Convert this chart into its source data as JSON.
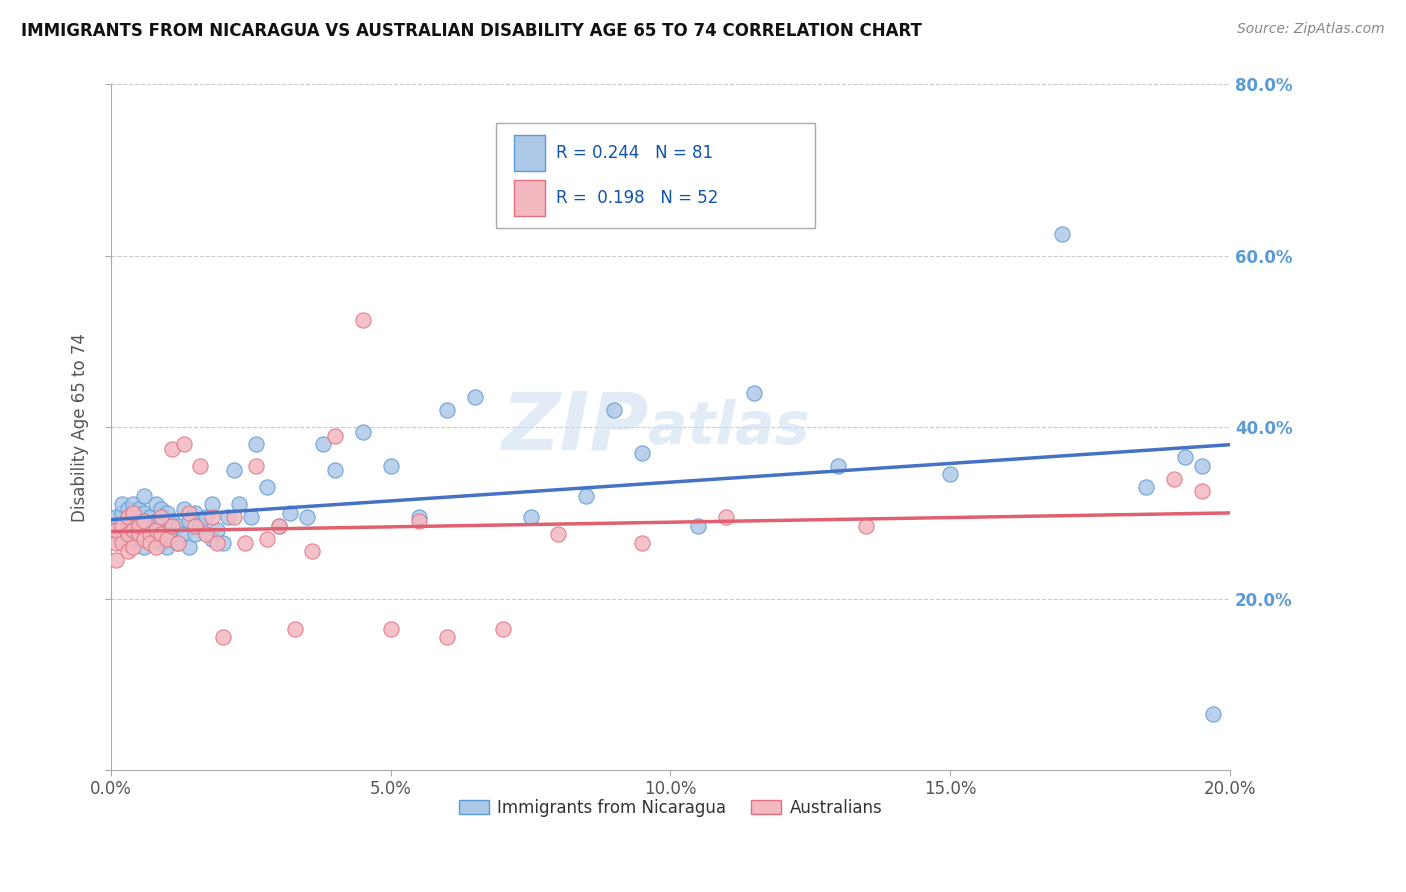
{
  "title": "IMMIGRANTS FROM NICARAGUA VS AUSTRALIAN DISABILITY AGE 65 TO 74 CORRELATION CHART",
  "source": "Source: ZipAtlas.com",
  "ylabel": "Disability Age 65 to 74",
  "xlim": [
    0.0,
    0.2
  ],
  "ylim": [
    0.0,
    0.8
  ],
  "xticks": [
    0.0,
    0.05,
    0.1,
    0.15,
    0.2
  ],
  "yticks": [
    0.0,
    0.2,
    0.4,
    0.6,
    0.8
  ],
  "legend_blue_label": "Immigrants from Nicaragua",
  "legend_pink_label": "Australians",
  "r_blue": 0.244,
  "n_blue": 81,
  "r_pink": 0.198,
  "n_pink": 52,
  "color_blue_fill": "#aec8e8",
  "color_blue_edge": "#5b9bd5",
  "color_blue_line": "#4472c4",
  "color_pink_fill": "#f4b8c1",
  "color_pink_edge": "#e07080",
  "color_pink_line": "#e06070",
  "background_color": "#ffffff",
  "grid_color": "#cccccc",
  "blue_points_x": [
    0.001,
    0.001,
    0.001,
    0.002,
    0.002,
    0.002,
    0.002,
    0.003,
    0.003,
    0.003,
    0.003,
    0.003,
    0.004,
    0.004,
    0.004,
    0.004,
    0.005,
    0.005,
    0.005,
    0.005,
    0.006,
    0.006,
    0.006,
    0.006,
    0.007,
    0.007,
    0.007,
    0.008,
    0.008,
    0.008,
    0.009,
    0.009,
    0.009,
    0.01,
    0.01,
    0.01,
    0.011,
    0.011,
    0.012,
    0.012,
    0.013,
    0.013,
    0.014,
    0.014,
    0.015,
    0.015,
    0.016,
    0.017,
    0.018,
    0.018,
    0.019,
    0.02,
    0.021,
    0.022,
    0.023,
    0.025,
    0.026,
    0.028,
    0.03,
    0.032,
    0.035,
    0.038,
    0.04,
    0.045,
    0.05,
    0.055,
    0.06,
    0.065,
    0.075,
    0.085,
    0.09,
    0.095,
    0.105,
    0.115,
    0.13,
    0.15,
    0.17,
    0.185,
    0.192,
    0.195,
    0.197
  ],
  "blue_points_y": [
    0.285,
    0.295,
    0.275,
    0.28,
    0.3,
    0.27,
    0.31,
    0.275,
    0.295,
    0.265,
    0.305,
    0.285,
    0.29,
    0.27,
    0.31,
    0.28,
    0.285,
    0.295,
    0.275,
    0.305,
    0.28,
    0.3,
    0.26,
    0.32,
    0.285,
    0.295,
    0.275,
    0.29,
    0.27,
    0.31,
    0.285,
    0.265,
    0.305,
    0.28,
    0.3,
    0.26,
    0.29,
    0.27,
    0.285,
    0.265,
    0.305,
    0.275,
    0.29,
    0.26,
    0.3,
    0.275,
    0.285,
    0.295,
    0.27,
    0.31,
    0.28,
    0.265,
    0.295,
    0.35,
    0.31,
    0.295,
    0.38,
    0.33,
    0.285,
    0.3,
    0.295,
    0.38,
    0.35,
    0.395,
    0.355,
    0.295,
    0.42,
    0.435,
    0.295,
    0.32,
    0.42,
    0.37,
    0.285,
    0.44,
    0.355,
    0.345,
    0.625,
    0.33,
    0.365,
    0.355,
    0.065
  ],
  "pink_points_x": [
    0.001,
    0.001,
    0.001,
    0.002,
    0.002,
    0.003,
    0.003,
    0.003,
    0.004,
    0.004,
    0.004,
    0.005,
    0.005,
    0.006,
    0.006,
    0.007,
    0.007,
    0.008,
    0.008,
    0.009,
    0.009,
    0.01,
    0.011,
    0.011,
    0.012,
    0.013,
    0.014,
    0.015,
    0.016,
    0.017,
    0.018,
    0.019,
    0.02,
    0.022,
    0.024,
    0.026,
    0.028,
    0.03,
    0.033,
    0.036,
    0.04,
    0.045,
    0.05,
    0.055,
    0.06,
    0.07,
    0.08,
    0.095,
    0.11,
    0.135,
    0.19,
    0.195
  ],
  "pink_points_y": [
    0.265,
    0.28,
    0.245,
    0.285,
    0.265,
    0.275,
    0.295,
    0.255,
    0.28,
    0.26,
    0.3,
    0.275,
    0.285,
    0.27,
    0.29,
    0.275,
    0.265,
    0.28,
    0.26,
    0.275,
    0.295,
    0.27,
    0.375,
    0.285,
    0.265,
    0.38,
    0.3,
    0.285,
    0.355,
    0.275,
    0.295,
    0.265,
    0.155,
    0.295,
    0.265,
    0.355,
    0.27,
    0.285,
    0.165,
    0.255,
    0.39,
    0.525,
    0.165,
    0.29,
    0.155,
    0.165,
    0.275,
    0.265,
    0.295,
    0.285,
    0.34,
    0.325
  ]
}
